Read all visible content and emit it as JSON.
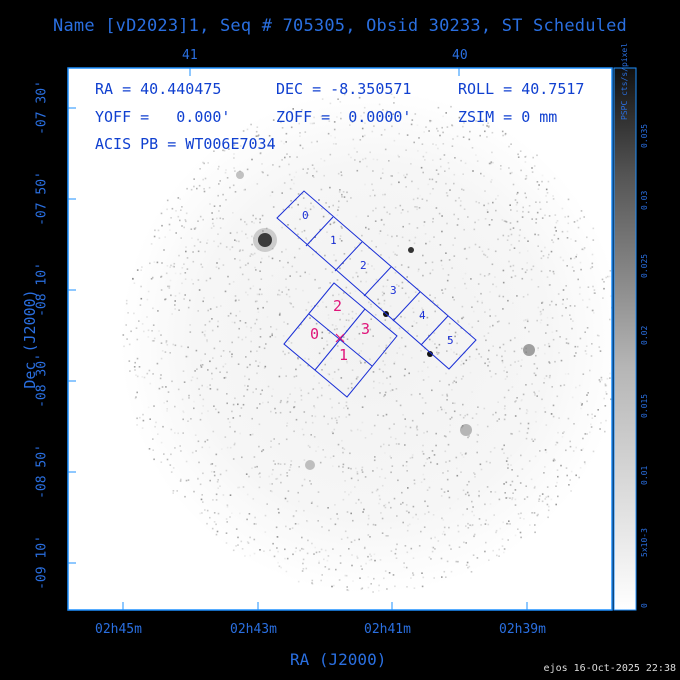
{
  "header": {
    "title": "Name [vD2023]1, Seq # 705305, Obsid 30233, ST Scheduled"
  },
  "top_axis": {
    "ticks": [
      "41",
      "40"
    ]
  },
  "y_axis": {
    "label": "Dec (J2000)",
    "ticks": [
      "-07 30'",
      "-07 50'",
      "-08 10'",
      "-08 30'",
      "-08 50'",
      "-09 10'"
    ]
  },
  "x_axis": {
    "label": "RA (J2000)",
    "ticks": [
      "02h45m",
      "02h43m",
      "02h41m",
      "02h39m"
    ]
  },
  "overlay": {
    "ra": "RA = 40.440475",
    "dec": "DEC = -8.350571",
    "roll": "ROLL = 40.7517",
    "yoff": "YOFF =   0.000'",
    "zoff": "ZOFF =  0.0000'",
    "zsim": "ZSIM = 0 mm",
    "acis_pb": "ACIS PB = WT006E7034"
  },
  "chips_s": [
    "0",
    "1",
    "2",
    "3",
    "4",
    "5"
  ],
  "chips_i": [
    "0",
    "1",
    "2",
    "3"
  ],
  "colorbar": {
    "label": "PSPC cts/s/pixel",
    "ticks": [
      "0",
      "5x10-3",
      "0.01",
      "0.015",
      "0.02",
      "0.025",
      "0.03",
      "0.035"
    ],
    "top_label": "0.035"
  },
  "footer": {
    "stamp": "ejos 16-Oct-2025 22:38"
  },
  "colors": {
    "frame": "#1e90ff",
    "chips": "#1a2fd6",
    "i_labels": "#e0157a",
    "background": "#000000",
    "field": "#ffffff"
  }
}
